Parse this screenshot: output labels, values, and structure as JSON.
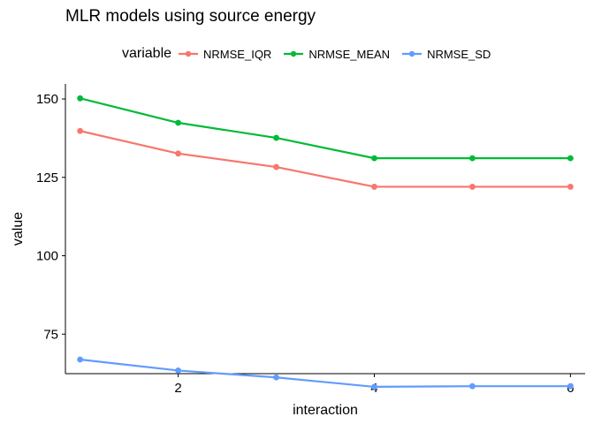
{
  "chart_data": {
    "type": "line",
    "title": "MLR models using source energy",
    "xlabel": "interaction",
    "ylabel": "value",
    "legend_title": "variable",
    "legend_position": "top",
    "grid": false,
    "xlim": [
      0.85,
      6.15
    ],
    "ylim": [
      62.4,
      154.8
    ],
    "x_ticks": [
      2,
      4,
      6
    ],
    "y_ticks": [
      75,
      100,
      125,
      150
    ],
    "x": [
      1,
      2,
      3,
      4,
      5,
      6
    ],
    "series": [
      {
        "name": "NRMSE_IQR",
        "color": "#F8766D",
        "values": [
          139.8,
          132.6,
          128.3,
          122.0,
          122.0,
          122.0
        ]
      },
      {
        "name": "NRMSE_MEAN",
        "color": "#00BA38",
        "values": [
          150.2,
          142.4,
          137.6,
          131.1,
          131.1,
          131.1
        ]
      },
      {
        "name": "NRMSE_SD",
        "color": "#619CFF",
        "values": [
          66.9,
          63.4,
          61.2,
          58.2,
          58.4,
          58.4
        ]
      }
    ]
  }
}
